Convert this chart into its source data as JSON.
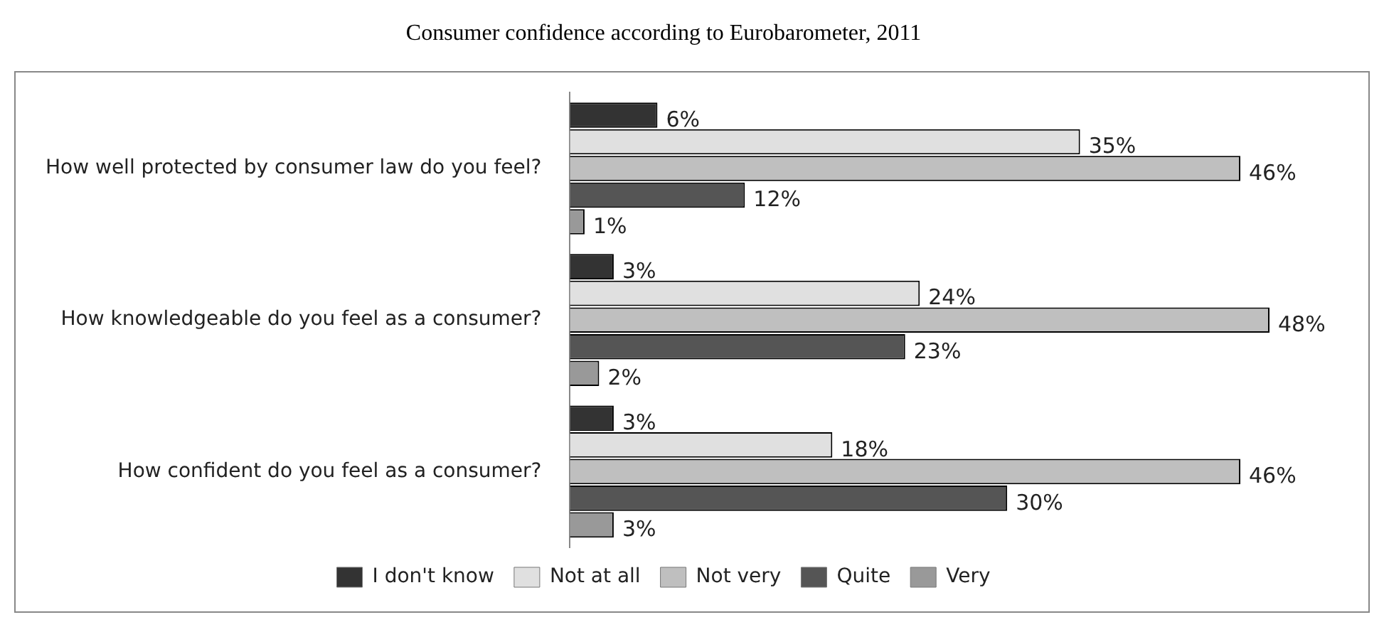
{
  "chart_data": {
    "type": "bar",
    "orientation": "horizontal",
    "title": "Consumer confidence according to Eurobarometer, 2011",
    "categories": [
      "How well protected by consumer law do you feel?",
      "How knowledgeable do you feel as a consumer?",
      "How confident do you feel as a consumer?"
    ],
    "series": [
      {
        "name": "I don't know",
        "color": "#333333",
        "values": [
          6,
          3,
          3
        ],
        "value_labels": [
          "6%",
          "3%",
          "3%"
        ]
      },
      {
        "name": "Not at all",
        "color": "#e0e0e0",
        "values": [
          35,
          24,
          18
        ],
        "value_labels": [
          "35%",
          "24%",
          "18%"
        ]
      },
      {
        "name": "Not very",
        "color": "#bfbfbf",
        "values": [
          46,
          48,
          46
        ],
        "value_labels": [
          "46%",
          "48%",
          "46%"
        ]
      },
      {
        "name": "Quite",
        "color": "#555555",
        "values": [
          12,
          23,
          30
        ],
        "value_labels": [
          "12%",
          "23%",
          "30%"
        ]
      },
      {
        "name": "Very",
        "color": "#999999",
        "values": [
          1,
          2,
          3
        ],
        "value_labels": [
          "1%",
          "2%",
          "3%"
        ]
      }
    ],
    "legend": "bottom",
    "grid": false
  }
}
